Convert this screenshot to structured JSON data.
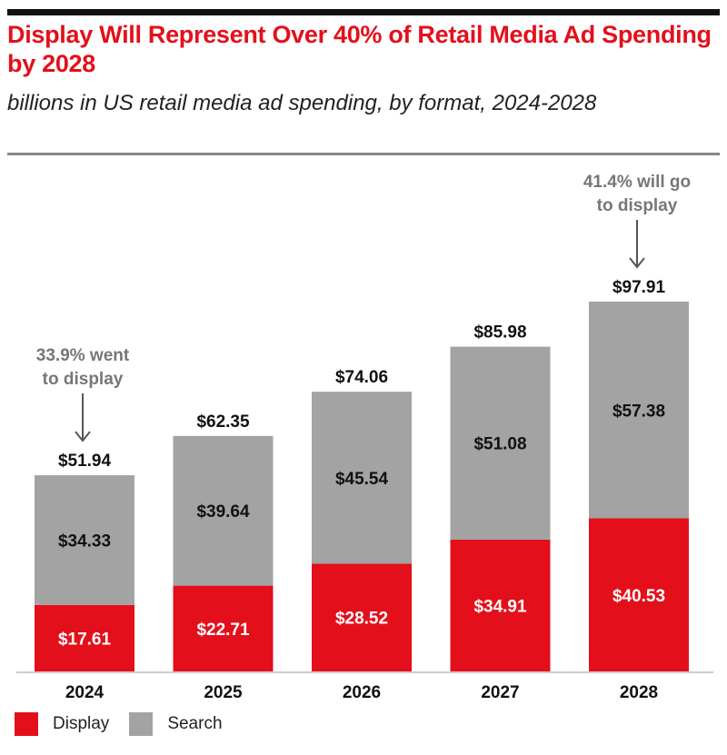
{
  "chart_data": {
    "type": "bar",
    "stacked": true,
    "title": "Display Will Represent Over 40% of Retail Media Ad Spending by 2028",
    "subtitle": "billions in US retail media ad spending, by format, 2024-2028",
    "categories": [
      "2024",
      "2025",
      "2026",
      "2027",
      "2028"
    ],
    "series": [
      {
        "name": "Display",
        "color": "#e3101b",
        "values": [
          17.61,
          22.71,
          28.52,
          34.91,
          40.53
        ],
        "labels": [
          "$17.61",
          "$22.71",
          "$28.52",
          "$34.91",
          "$40.53"
        ]
      },
      {
        "name": "Search",
        "color": "#a3a3a3",
        "values": [
          34.33,
          39.64,
          45.54,
          51.08,
          57.38
        ],
        "labels": [
          "$34.33",
          "$39.64",
          "$45.54",
          "$51.08",
          "$57.38"
        ]
      }
    ],
    "totals": [
      51.94,
      62.35,
      74.06,
      85.98,
      97.91
    ],
    "total_labels": [
      "$51.94",
      "$62.35",
      "$74.06",
      "$85.98",
      "$97.91"
    ],
    "annotations": [
      {
        "category": "2024",
        "lines": [
          "33.9% went",
          "to display"
        ]
      },
      {
        "category": "2028",
        "lines": [
          "41.4% will go",
          "to display"
        ]
      }
    ],
    "ylim": [
      0,
      100
    ],
    "grid": false,
    "legend_position": "bottom-left"
  }
}
